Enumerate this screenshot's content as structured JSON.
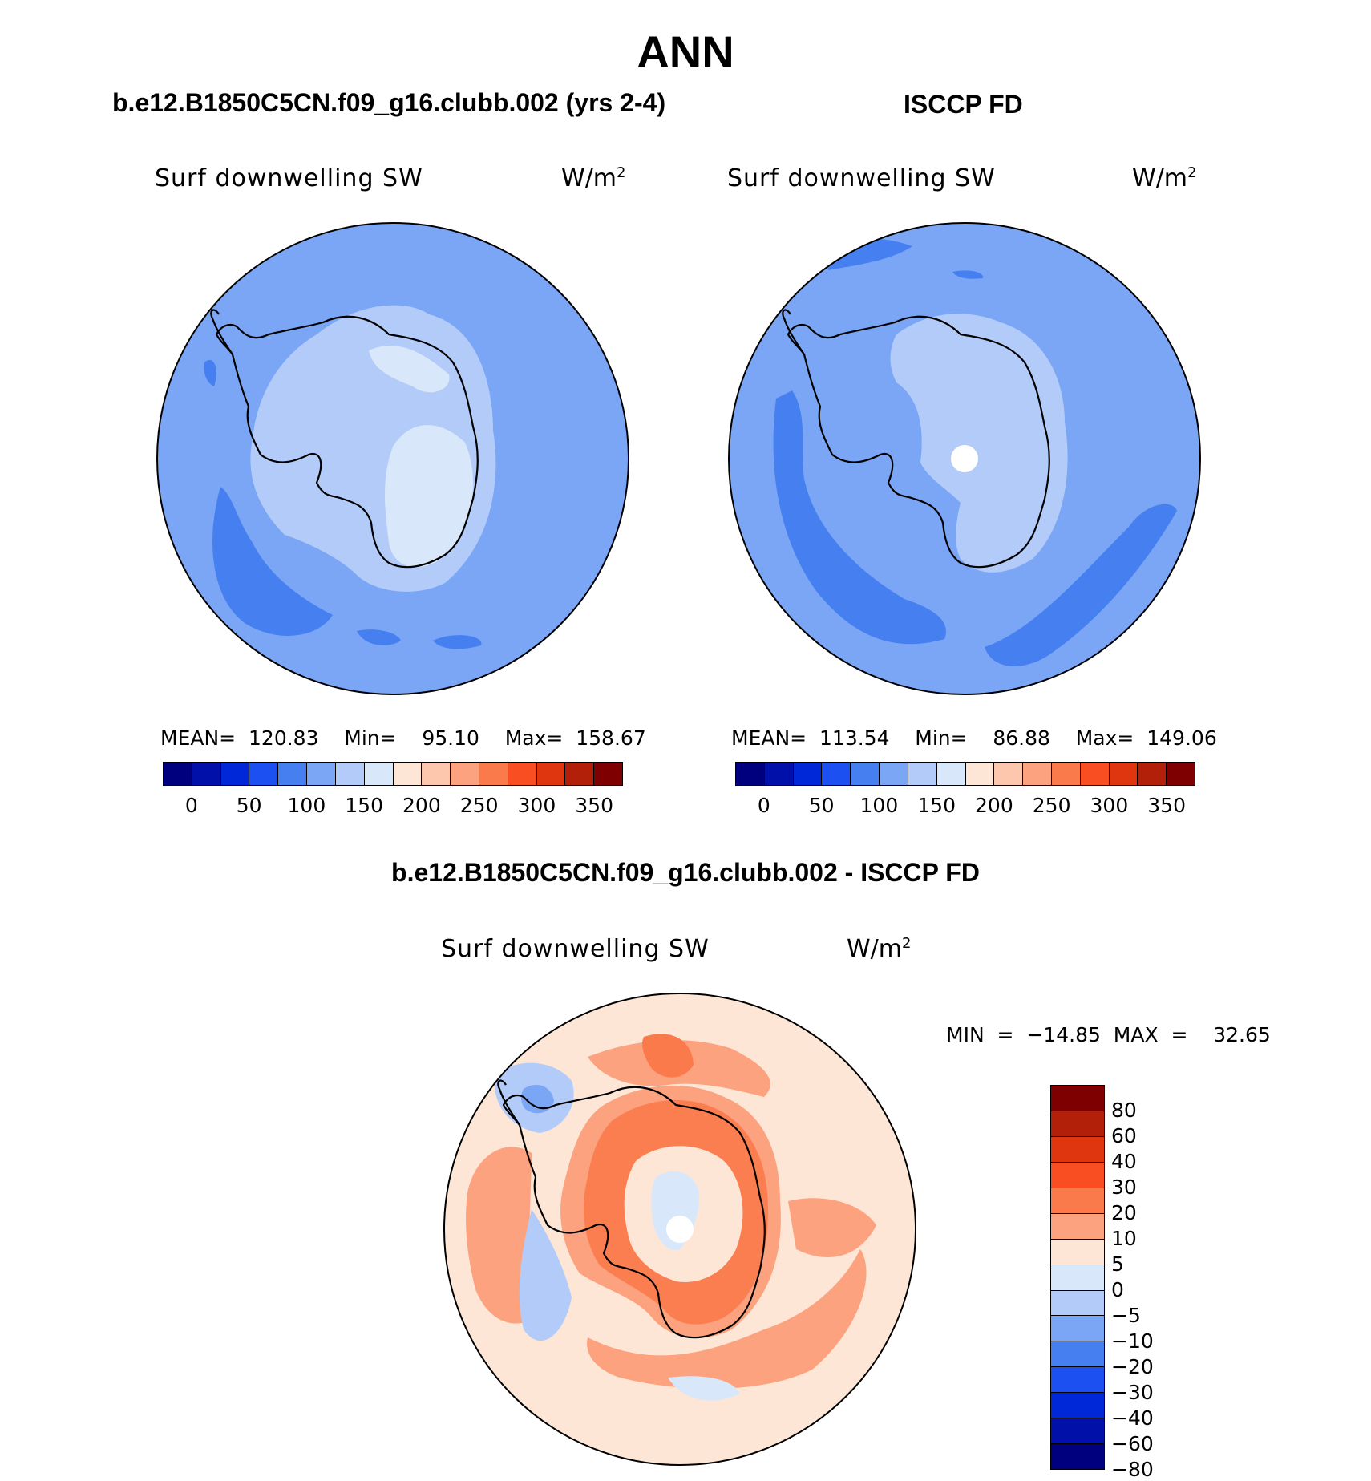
{
  "page": {
    "season": "ANN",
    "case_label": "b.e12.B1850C5CN.f09_g16.clubb.002 (yrs 2-4)",
    "obs_label": "ISCCP FD",
    "diff_label": "b.e12.B1850C5CN.f09_g16.clubb.002 - ISCCP FD"
  },
  "panels": {
    "model": {
      "variable": "Surf  downwelling  SW",
      "units_base": "W/m",
      "units_exp": "2",
      "stats": "MEAN=  120.83    Min=    95.10    Max=  158.67"
    },
    "obs": {
      "variable": "Surf  downwelling  SW",
      "units_base": "W/m",
      "units_exp": "2",
      "stats": "MEAN=  113.54    Min=    86.88    Max=  149.06"
    },
    "diff": {
      "variable": "Surf  downwelling  SW",
      "units_base": "W/m",
      "units_exp": "2",
      "stats": "MIN  =  −14.85  MAX  =    32.65"
    }
  },
  "abs_colorbar": {
    "colors": [
      "#00007f",
      "#0010a8",
      "#0028d8",
      "#1c50f0",
      "#4680f0",
      "#7aa6f5",
      "#b3cbf8",
      "#d8e8fa",
      "#fde6d6",
      "#fdc7ae",
      "#fca27f",
      "#fb7a4c",
      "#f94e22",
      "#e0360f",
      "#b3200a",
      "#7f0000"
    ],
    "labels": [
      "0",
      "50",
      "100",
      "150",
      "200",
      "250",
      "300",
      "350"
    ]
  },
  "diff_colorbar": {
    "colors": [
      "#7f0000",
      "#b3200a",
      "#e0360f",
      "#f94e22",
      "#fb7a4c",
      "#fca27f",
      "#fde6d6",
      "#d8e8fa",
      "#b3cbf8",
      "#7aa6f5",
      "#4680f0",
      "#1c50f0",
      "#0028d8",
      "#0010a8",
      "#00007f"
    ],
    "labels": [
      "80",
      "60",
      "40",
      "30",
      "20",
      "10",
      "5",
      "0",
      "−5",
      "−10",
      "−20",
      "−30",
      "−40",
      "−60",
      "−80"
    ]
  }
}
